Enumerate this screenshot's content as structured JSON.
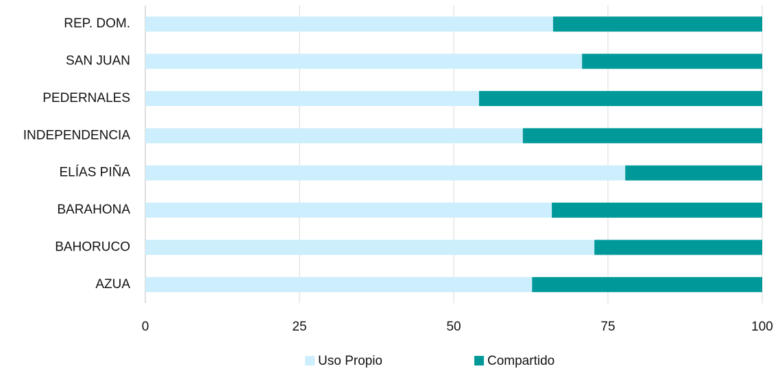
{
  "chart_data": {
    "type": "stacked_barh",
    "categories": [
      "REP. DOM.",
      "SAN JUAN",
      "PEDERNALES",
      "INDEPENDENCIA",
      "ELÍAS PIÑA",
      "BARAHONA",
      "BAHORUCO",
      "AZUA"
    ],
    "series": [
      {
        "name": "Uso Propio",
        "color": "#cdeefc",
        "values": [
          66.1,
          70.8,
          54.1,
          61.2,
          77.8,
          65.9,
          72.8,
          62.7
        ]
      },
      {
        "name": "Compartido",
        "color": "#009999",
        "values": [
          33.9,
          29.2,
          45.9,
          38.8,
          22.2,
          34.1,
          27.2,
          37.3
        ]
      }
    ],
    "xlim": [
      0,
      100
    ],
    "xticks": [
      0,
      25,
      50,
      75,
      100
    ],
    "grid": true
  }
}
